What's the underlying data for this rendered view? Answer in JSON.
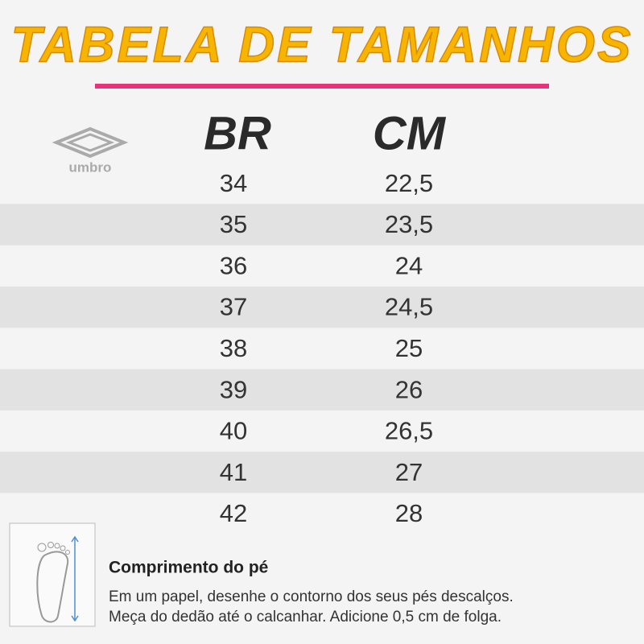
{
  "header": {
    "title": "TABELA DE TAMANHOS",
    "logo": "umbro"
  },
  "table": {
    "columns": [
      "BR",
      "CM"
    ],
    "rows": [
      [
        "34",
        "22,5"
      ],
      [
        "35",
        "23,5"
      ],
      [
        "36",
        "24"
      ],
      [
        "37",
        "24,5"
      ],
      [
        "38",
        "25"
      ],
      [
        "39",
        "26"
      ],
      [
        "40",
        "26,5"
      ],
      [
        "41",
        "27"
      ],
      [
        "42",
        "28"
      ]
    ]
  },
  "note": {
    "title": "Comprimento do pé",
    "lines": [
      "Em um papel, desenhe o contorno dos seus pés descalços.",
      "Meça do dedão até o calcanhar. Adicione 0,5 cm de folga."
    ]
  }
}
